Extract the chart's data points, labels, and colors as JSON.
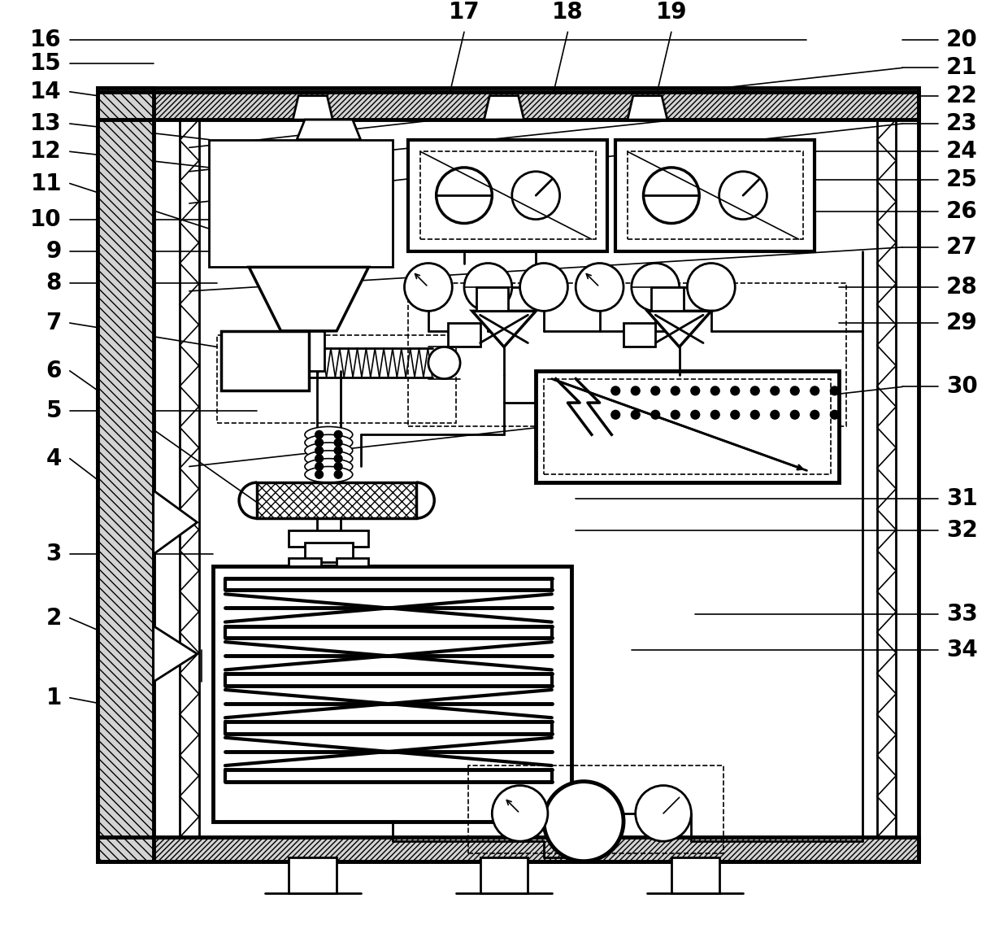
{
  "bg_color": "#ffffff",
  "line_color": "#000000",
  "lw": 2.0,
  "tlw": 1.2,
  "thw": 3.5,
  "fs": 20,
  "fig_w": 12.4,
  "fig_h": 11.42
}
